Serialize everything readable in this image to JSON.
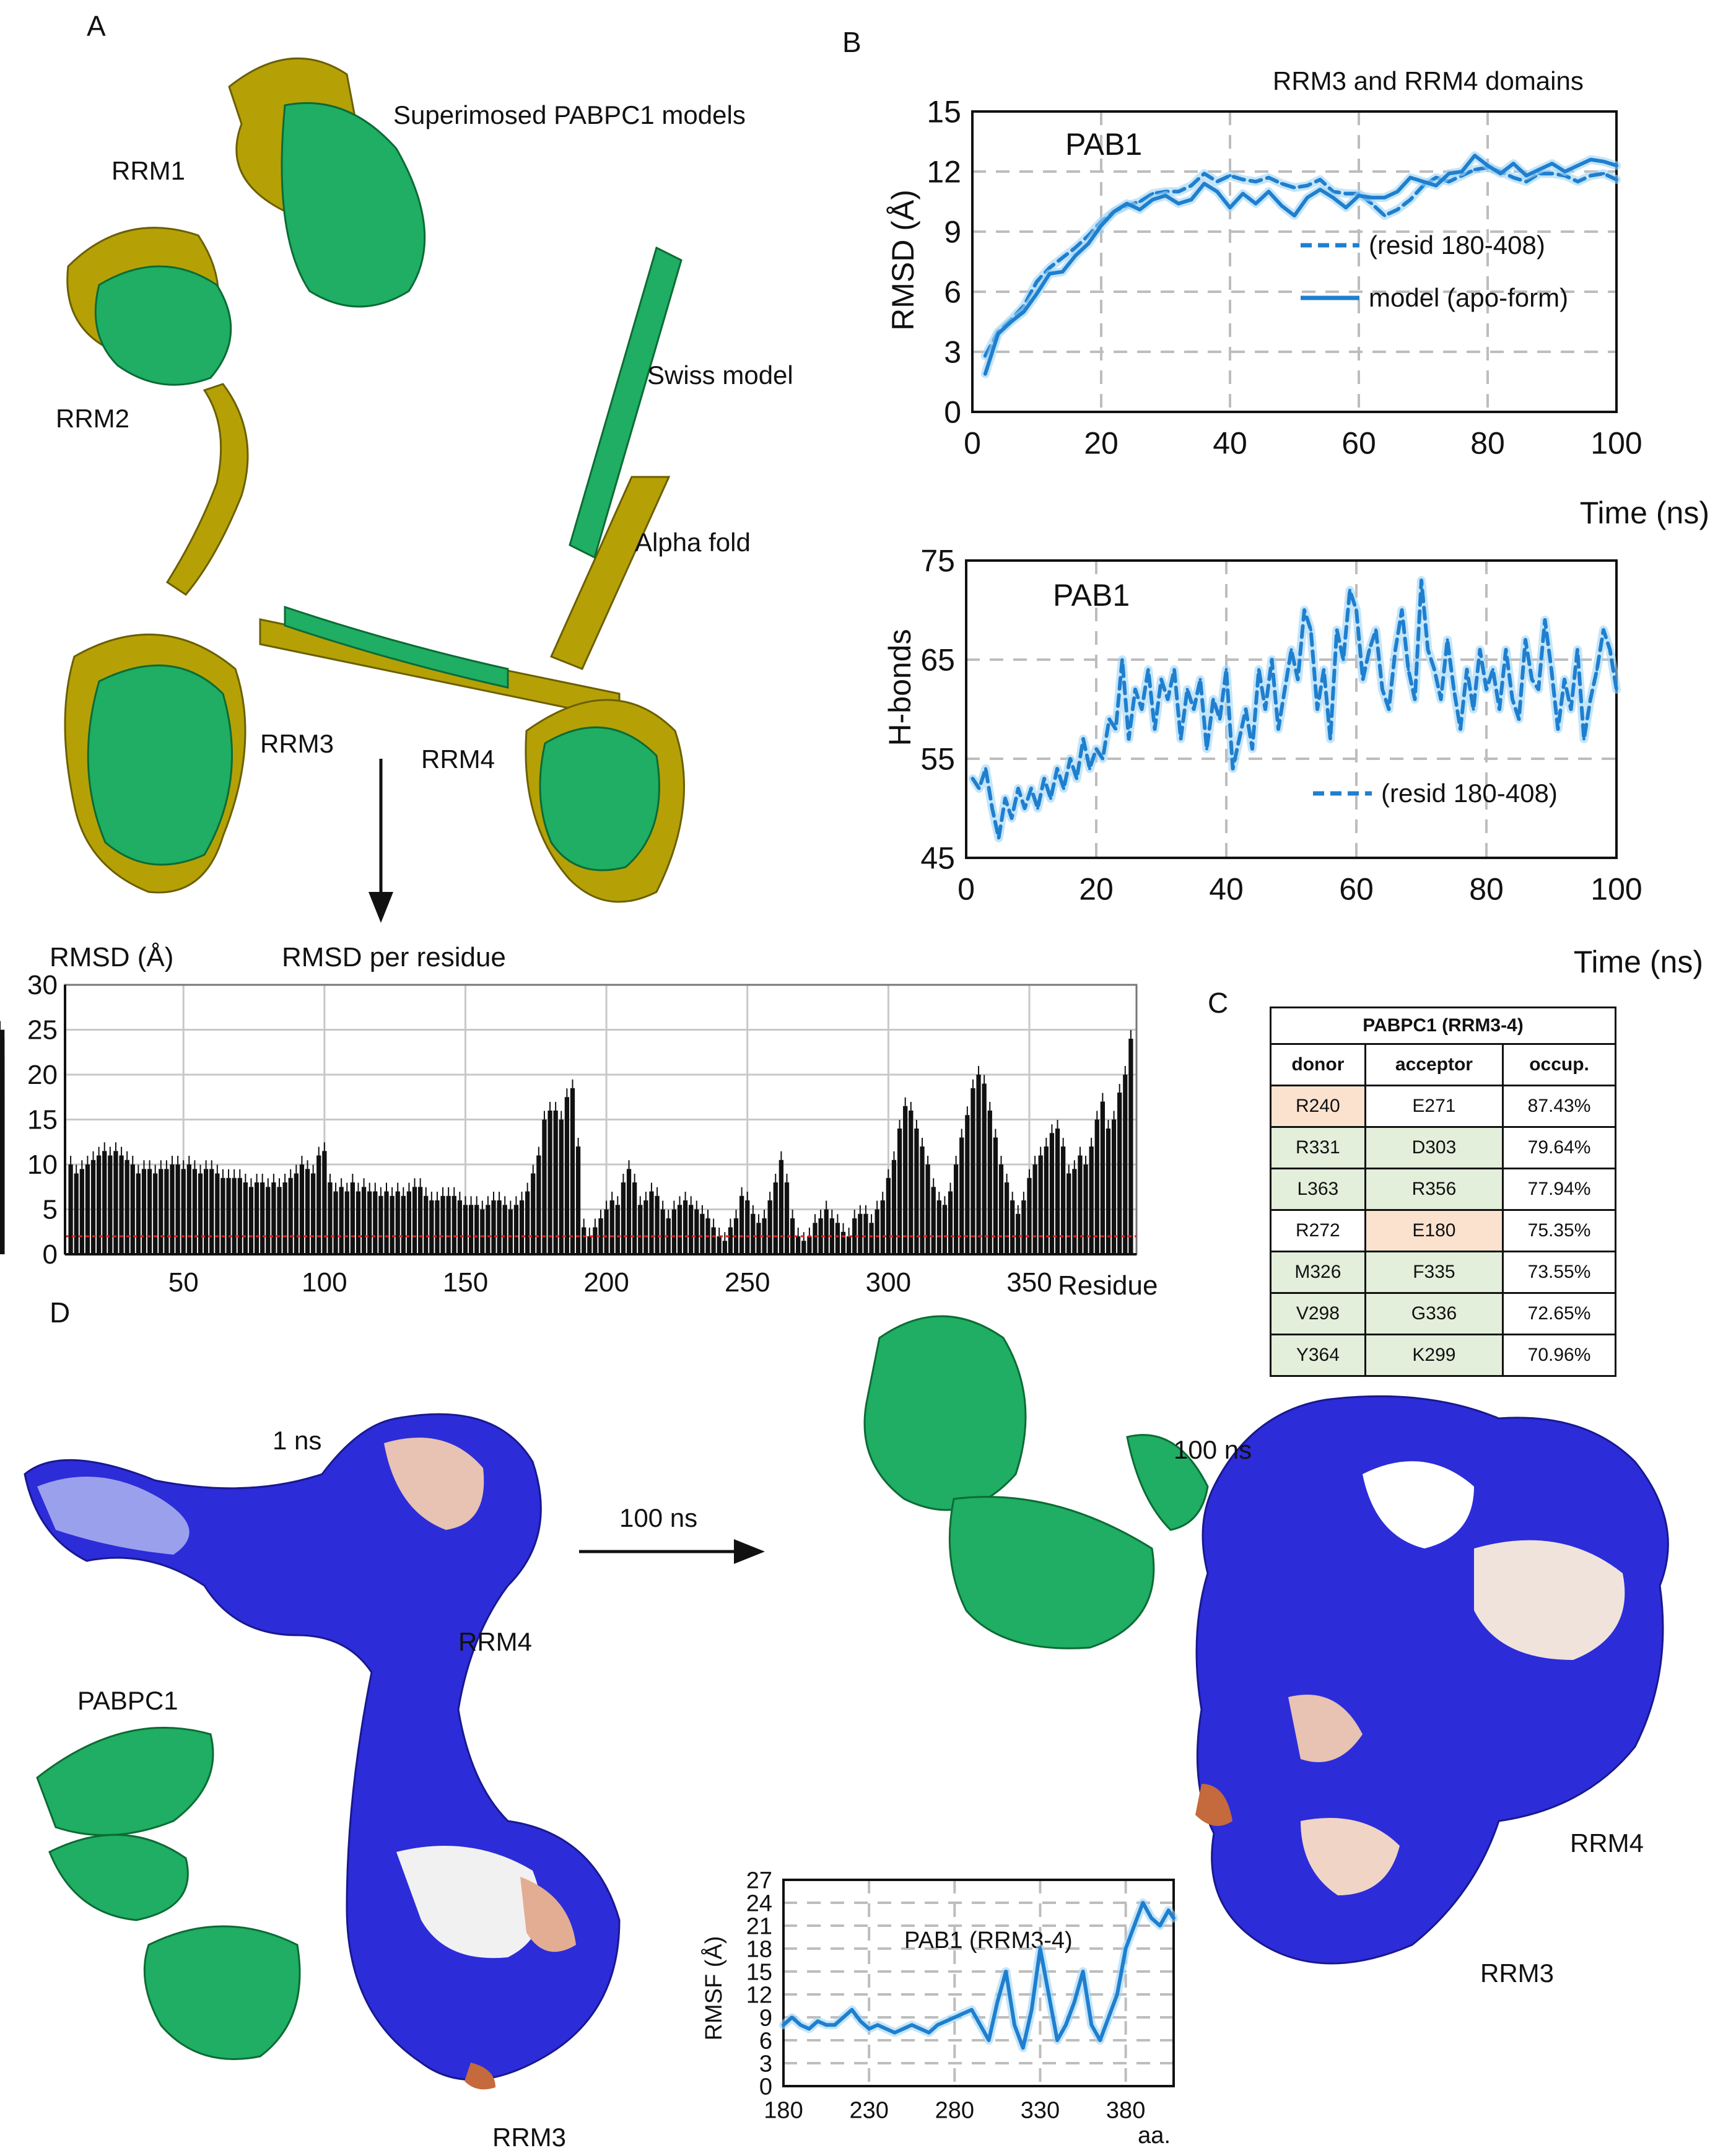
{
  "panels": {
    "A": {
      "label": "A",
      "title": "Superimosed PABPC1 models",
      "labels": [
        "RRM1",
        "RRM2",
        "RRM3",
        "RRM4",
        "Swiss model",
        "Alpha fold"
      ],
      "colors": {
        "swiss_model": "#1fae63",
        "alpha_fold": "#b5a106"
      }
    },
    "B": {
      "label": "B",
      "title": "RRM3 and RRM4 domains"
    },
    "C": {
      "label": "C",
      "table": {
        "caption": "PABPC1 (RRM3-4)",
        "headers": [
          "donor",
          "acceptor",
          "occup."
        ],
        "rows": [
          {
            "donor": "R240",
            "acceptor": "E271",
            "occup": "87.43%",
            "donor_color": "orange",
            "acceptor_color": "white"
          },
          {
            "donor": "R331",
            "acceptor": "D303",
            "occup": "79.64%",
            "donor_color": "green",
            "acceptor_color": "green"
          },
          {
            "donor": "L363",
            "acceptor": "R356",
            "occup": "77.94%",
            "donor_color": "green",
            "acceptor_color": "green"
          },
          {
            "donor": "R272",
            "acceptor": "E180",
            "occup": "75.35%",
            "donor_color": "white",
            "acceptor_color": "orange"
          },
          {
            "donor": "M326",
            "acceptor": "F335",
            "occup": "73.55%",
            "donor_color": "green",
            "acceptor_color": "green"
          },
          {
            "donor": "V298",
            "acceptor": "G336",
            "occup": "72.65%",
            "donor_color": "green",
            "acceptor_color": "green"
          },
          {
            "donor": "Y364",
            "acceptor": "K299",
            "occup": "70.96%",
            "donor_color": "green",
            "acceptor_color": "green"
          }
        ]
      }
    },
    "D": {
      "label": "D",
      "labels": {
        "t1": "1 ns",
        "arrow": "100 ns",
        "t100": "100 ns",
        "pabpc1": "PABPC1",
        "rrm4_left": "RRM4",
        "rrm3_left": "RRM3",
        "rrm4_right": "RRM4",
        "rrm3_right": "RRM3"
      },
      "colors": {
        "positive": "#1d1de0",
        "negative": "#c46a3c",
        "neutral": "#eeeeee",
        "ribbon": "#1fae63"
      }
    }
  },
  "chart_data": [
    {
      "id": "rmsd",
      "type": "line",
      "title": "PAB1",
      "xlabel": "Time (ns)",
      "ylabel": "RMSD (Å)",
      "xlim": [
        0,
        100
      ],
      "ylim": [
        0,
        15
      ],
      "xticks": [
        0,
        20,
        40,
        60,
        80,
        100
      ],
      "yticks": [
        0,
        3,
        6,
        9,
        12,
        15
      ],
      "grid": true,
      "legend": "right",
      "x": [
        2,
        4,
        6,
        8,
        10,
        12,
        14,
        16,
        18,
        20,
        22,
        24,
        26,
        28,
        30,
        32,
        34,
        36,
        38,
        40,
        42,
        44,
        46,
        48,
        50,
        52,
        54,
        56,
        58,
        60,
        62,
        64,
        66,
        68,
        70,
        72,
        74,
        76,
        78,
        80,
        82,
        84,
        86,
        88,
        90,
        92,
        94,
        96,
        98,
        100
      ],
      "series": [
        {
          "name": "(resid 180-408)",
          "style": "dashed",
          "color": "#1f7fcf",
          "values": [
            2.8,
            4.0,
            4.6,
            5.3,
            6.5,
            7.2,
            7.7,
            8.2,
            8.8,
            9.5,
            10.0,
            10.3,
            10.5,
            10.9,
            11.0,
            11.0,
            11.3,
            11.9,
            11.5,
            11.8,
            11.6,
            11.5,
            11.7,
            11.4,
            11.2,
            11.3,
            11.6,
            11.0,
            10.9,
            10.9,
            10.4,
            9.8,
            10.1,
            10.6,
            11.3,
            11.7,
            11.5,
            11.8,
            12.1,
            12.2,
            12.0,
            11.7,
            11.5,
            11.9,
            11.9,
            11.8,
            11.5,
            11.8,
            11.9,
            11.6
          ]
        },
        {
          "name": "model (apo-form)",
          "style": "solid",
          "color": "#1f7fcf",
          "values": [
            1.9,
            3.9,
            4.5,
            5.0,
            5.9,
            6.9,
            7.0,
            7.8,
            8.4,
            9.3,
            10.0,
            10.4,
            10.1,
            10.6,
            10.8,
            10.4,
            10.6,
            11.4,
            11.0,
            10.2,
            10.9,
            10.4,
            11.0,
            10.3,
            9.8,
            10.7,
            11.1,
            10.7,
            10.2,
            10.8,
            10.7,
            10.7,
            11.0,
            11.7,
            11.5,
            11.3,
            11.9,
            12.0,
            12.8,
            12.3,
            11.9,
            12.4,
            11.8,
            12.1,
            12.4,
            12.0,
            12.3,
            12.6,
            12.5,
            12.3
          ]
        }
      ]
    },
    {
      "id": "hbonds",
      "type": "line",
      "title": "PAB1",
      "xlabel": "Time (ns)",
      "ylabel": "H-bonds",
      "xlim": [
        0,
        100
      ],
      "ylim": [
        45,
        75
      ],
      "xticks": [
        0,
        20,
        40,
        60,
        80,
        100
      ],
      "yticks": [
        45,
        55,
        65,
        75
      ],
      "grid": true,
      "legend": "bottom-right",
      "x": [
        1,
        2,
        3,
        4,
        5,
        6,
        7,
        8,
        9,
        10,
        11,
        12,
        13,
        14,
        15,
        16,
        17,
        18,
        19,
        20,
        21,
        22,
        23,
        24,
        25,
        26,
        27,
        28,
        29,
        30,
        31,
        32,
        33,
        34,
        35,
        36,
        37,
        38,
        39,
        40,
        41,
        42,
        43,
        44,
        45,
        46,
        47,
        48,
        49,
        50,
        51,
        52,
        53,
        54,
        55,
        56,
        57,
        58,
        59,
        60,
        61,
        62,
        63,
        64,
        65,
        66,
        67,
        68,
        69,
        70,
        71,
        72,
        73,
        74,
        75,
        76,
        77,
        78,
        79,
        80,
        81,
        82,
        83,
        84,
        85,
        86,
        87,
        88,
        89,
        90,
        91,
        92,
        93,
        94,
        95,
        96,
        97,
        98,
        99,
        100
      ],
      "series": [
        {
          "name": "(resid 180-408)",
          "style": "dashed",
          "color": "#1f7fcf",
          "values": [
            53,
            52,
            54,
            50,
            47,
            51,
            49,
            52,
            50,
            52,
            50,
            53,
            51,
            54,
            52,
            55,
            53,
            57,
            54,
            56,
            55,
            59,
            58,
            65,
            57,
            62,
            60,
            64,
            58,
            63,
            61,
            64,
            57,
            62,
            60,
            63,
            56,
            61,
            59,
            64,
            54,
            57,
            60,
            56,
            64,
            60,
            65,
            58,
            62,
            66,
            63,
            70,
            68,
            60,
            64,
            57,
            68,
            65,
            72,
            70,
            63,
            66,
            68,
            62,
            60,
            66,
            70,
            64,
            61,
            73,
            66,
            64,
            61,
            67,
            62,
            58,
            64,
            60,
            66,
            62,
            64,
            60,
            66,
            61,
            59,
            67,
            63,
            62,
            69,
            64,
            58,
            63,
            60,
            66,
            57,
            61,
            64,
            68,
            66,
            62
          ]
        }
      ]
    },
    {
      "id": "rmsd_per_residue",
      "type": "bar",
      "title": "RMSD per residue",
      "xlabel": "Residue",
      "ylabel": "RMSD (Å)",
      "xlim": [
        8,
        388
      ],
      "ylim": [
        0,
        30
      ],
      "xticks": [
        50,
        100,
        150,
        200,
        250,
        300,
        350
      ],
      "yticks": [
        0,
        5,
        10,
        15,
        20,
        25,
        30
      ],
      "grid": true,
      "threshold_line": {
        "value": 2,
        "color": "#e02020",
        "style": "dotted"
      },
      "residues": [
        10,
        12,
        14,
        16,
        18,
        20,
        22,
        24,
        26,
        28,
        30,
        32,
        34,
        36,
        38,
        40,
        42,
        44,
        46,
        48,
        50,
        52,
        54,
        56,
        58,
        60,
        62,
        64,
        66,
        68,
        70,
        72,
        74,
        76,
        78,
        80,
        82,
        84,
        86,
        88,
        90,
        92,
        94,
        96,
        98,
        100,
        102,
        104,
        106,
        108,
        110,
        112,
        114,
        116,
        118,
        120,
        122,
        124,
        126,
        128,
        130,
        132,
        134,
        136,
        138,
        140,
        142,
        144,
        146,
        148,
        150,
        152,
        154,
        156,
        158,
        160,
        162,
        164,
        166,
        168,
        170,
        172,
        174,
        176,
        178,
        180,
        182,
        184,
        186,
        188,
        190,
        192,
        194,
        196,
        198,
        200,
        202,
        204,
        206,
        208,
        210,
        212,
        214,
        216,
        218,
        220,
        222,
        224,
        226,
        228,
        230,
        232,
        234,
        236,
        238,
        240,
        242,
        244,
        246,
        248,
        250,
        252,
        254,
        256,
        258,
        260,
        262,
        264,
        266,
        268,
        270,
        272,
        274,
        276,
        278,
        280,
        282,
        284,
        286,
        288,
        290,
        292,
        294,
        296,
        298,
        300,
        302,
        304,
        306,
        308,
        310,
        312,
        314,
        316,
        318,
        320,
        322,
        324,
        326,
        328,
        330,
        332,
        334,
        336,
        338,
        340,
        342,
        344,
        346,
        348,
        350,
        352,
        354,
        356,
        358,
        360,
        362,
        364,
        366,
        368,
        370,
        372,
        374,
        376,
        378,
        380,
        382,
        384,
        386
      ],
      "values": [
        10,
        9,
        9.5,
        10,
        10.5,
        11,
        11.5,
        11,
        11.5,
        11,
        10.5,
        10,
        9,
        9.5,
        9.5,
        9,
        9.5,
        9.5,
        10,
        10,
        9.5,
        10,
        9.5,
        9,
        9.5,
        9.5,
        9,
        8.5,
        8.5,
        8.5,
        8.5,
        8,
        7.5,
        8,
        8,
        7.5,
        8,
        7.5,
        8,
        8.5,
        9,
        10,
        9.5,
        9,
        11,
        11.5,
        8,
        7,
        7.5,
        7,
        8,
        7,
        7.5,
        7,
        7,
        6.5,
        7,
        6.5,
        7,
        6.5,
        7,
        7.5,
        7.5,
        6.5,
        6,
        6,
        6.5,
        6.5,
        6.5,
        6,
        5.5,
        5.5,
        5.5,
        5,
        5.5,
        6,
        6,
        5.5,
        5,
        5.5,
        6,
        7,
        9,
        11,
        15,
        16,
        16,
        15,
        17.5,
        18.5,
        12,
        3,
        2,
        3,
        4,
        5,
        6,
        5.5,
        8,
        9.5,
        8,
        5.5,
        6,
        7,
        6.5,
        5,
        4,
        5,
        5.5,
        6,
        5.5,
        5,
        4.5,
        4,
        3,
        2,
        1.5,
        3,
        4,
        6.5,
        6,
        4.5,
        3.5,
        4,
        6,
        8,
        10.5,
        8,
        4,
        2,
        1.5,
        2,
        3.5,
        4,
        5,
        4,
        3.5,
        2.5,
        2,
        4,
        4.5,
        4.5,
        3.5,
        5,
        6,
        8.5,
        10.5,
        14,
        16.5,
        16,
        14,
        12,
        10,
        7.5,
        6,
        5.5,
        7,
        10,
        13,
        15.5,
        18.5,
        20,
        19,
        16,
        13,
        10,
        8,
        6,
        4.5,
        6,
        8.5,
        10,
        11,
        12,
        13.5,
        14,
        12,
        9,
        9.5,
        11,
        10,
        12,
        15,
        17,
        14,
        15,
        18,
        20,
        24,
        25,
        24,
        22,
        20,
        18,
        16.5
      ]
    },
    {
      "id": "rmsf",
      "type": "line",
      "title": "PAB1 (RRM3-4)",
      "xlabel": "aa.",
      "ylabel": "RMSF (Å)",
      "xlim": [
        180,
        408
      ],
      "ylim": [
        0,
        27
      ],
      "xticks": [
        180,
        230,
        280,
        330,
        380
      ],
      "yticks": [
        0,
        3,
        6,
        9,
        12,
        15,
        18,
        21,
        24,
        27
      ],
      "grid": true,
      "x": [
        180,
        185,
        190,
        195,
        200,
        205,
        210,
        215,
        220,
        225,
        230,
        235,
        240,
        245,
        250,
        255,
        260,
        265,
        270,
        275,
        280,
        285,
        290,
        295,
        300,
        305,
        310,
        315,
        320,
        325,
        330,
        335,
        340,
        345,
        350,
        355,
        360,
        365,
        370,
        375,
        380,
        385,
        390,
        395,
        400,
        405,
        408
      ],
      "series": [
        {
          "name": "",
          "style": "solid",
          "color": "#1f7fcf",
          "values": [
            8,
            9,
            8,
            7.5,
            8.5,
            8,
            8,
            9,
            10,
            8.5,
            7.5,
            8,
            7.5,
            7,
            7.5,
            8,
            7.5,
            7,
            8,
            8.5,
            9,
            9.5,
            10,
            8,
            6,
            11,
            15,
            8,
            5,
            10,
            18,
            12,
            6,
            8,
            11,
            15,
            8,
            6,
            9,
            12,
            18,
            21,
            24,
            22,
            21,
            23,
            22
          ]
        }
      ]
    }
  ]
}
